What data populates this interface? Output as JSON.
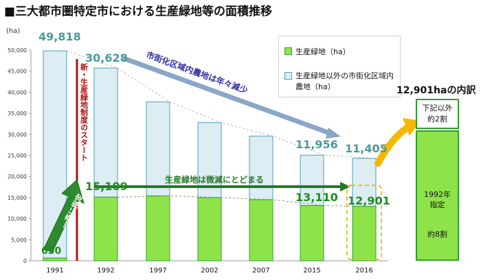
{
  "title": "■三大都市圏特定市における生産緑地等の面積推移",
  "chart_data": {
    "type": "bar",
    "stacked": true,
    "unit_label": "(ha)",
    "categories": [
      "1991",
      "1992",
      "1997",
      "2002",
      "2007",
      "2015",
      "2016"
    ],
    "series": [
      {
        "name": "生産緑地（ha）",
        "color": "#8fe34a",
        "values": [
          650,
          15109,
          15400,
          15000,
          14500,
          13110,
          12901
        ]
      },
      {
        "name": "生産緑地以外の市街化区域内農地（ha）",
        "color": "#dcedf4",
        "values": [
          49168,
          30628,
          22300,
          17800,
          15100,
          11956,
          11405
        ]
      }
    ],
    "ylim": [
      0,
      50000
    ],
    "yticks": [
      0,
      5000,
      10000,
      15000,
      20000,
      25000,
      30000,
      35000,
      40000,
      45000,
      50000
    ],
    "ytick_labels": [
      "0",
      "5,000",
      "10,000",
      "15,000",
      "20,000",
      "25,000",
      "30,000",
      "35,000",
      "40,000",
      "45,000",
      "50,000"
    ],
    "data_labels": {
      "total_1991": "49,818",
      "green_1991": "650",
      "green_1992": "15,109",
      "blue_1992": "30,628",
      "blue_2015": "11,956",
      "green_2015": "13,110",
      "blue_2016": "11,405",
      "green_2016": "12,901"
    },
    "annotations": {
      "new_system": "新・生産緑地制度のスタート",
      "bulk_designation": "一斉に指定",
      "decline": "市街化区域内農地は年々減少",
      "green_trend": "生産緑地は微減にとどまる"
    },
    "breakdown": {
      "title": "12,901haの内訳",
      "top_lines": [
        "下記以外",
        "約2割"
      ],
      "main_lines": [
        "1992年",
        "指定"
      ],
      "main_share": "約8割"
    }
  }
}
